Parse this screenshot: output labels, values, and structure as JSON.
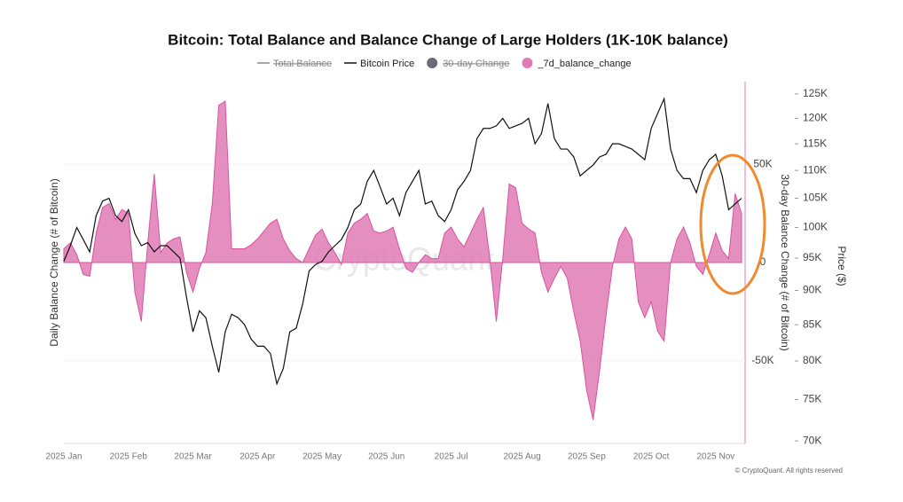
{
  "chart_data": {
    "type": "area_line",
    "title": "Bitcoin: Total Balance and Balance Change of Large Holders (1K-10K balance)",
    "ylabel": "Daily Balance Change (# of Bitcoin)",
    "y1label": "30-day Balance Change (# of Bitcoin)",
    "y2label": "Price ($)",
    "watermark": "CryptoQuant",
    "copyright": "© CryptoQuant. All rights reserved",
    "categories": [
      "2025 Jan",
      null,
      null,
      null,
      null,
      null,
      null,
      null,
      null,
      null,
      "2025 Feb",
      null,
      null,
      null,
      null,
      null,
      null,
      null,
      null,
      null,
      "2025 Mar",
      null,
      null,
      null,
      null,
      null,
      null,
      null,
      null,
      null,
      "2025 Apr",
      null,
      null,
      null,
      null,
      null,
      null,
      null,
      null,
      null,
      "2025 May",
      null,
      null,
      null,
      null,
      null,
      null,
      null,
      null,
      null,
      "2025 Jun",
      null,
      null,
      null,
      null,
      null,
      null,
      null,
      null,
      null,
      "2025 Jul",
      null,
      null,
      null,
      null,
      null,
      null,
      null,
      null,
      null,
      null,
      "2025 Aug",
      null,
      null,
      null,
      null,
      null,
      null,
      null,
      null,
      null,
      "2025 Sep",
      null,
      null,
      null,
      null,
      null,
      null,
      null,
      null,
      null,
      "2025 Oct",
      null,
      null,
      null,
      null,
      null,
      null,
      null,
      null,
      null,
      "2025 Nov",
      null,
      null,
      null,
      null
    ],
    "ylim": [
      -92000,
      92000
    ],
    "yticks": [
      {
        "value": 50000,
        "label": "50K"
      },
      0,
      {
        "value": -50000,
        "label": "-50K"
      }
    ],
    "y2lim": [
      69700,
      127600
    ],
    "y2log": true,
    "y2ticks": [
      {
        "value": 70000,
        "label": "70K"
      },
      {
        "value": 75000,
        "label": "75K"
      },
      {
        "value": 80000,
        "label": "80K"
      },
      {
        "value": 85000,
        "label": "85K"
      },
      {
        "value": 90000,
        "label": "90K"
      },
      {
        "value": 95000,
        "label": "95K"
      },
      {
        "value": 100000,
        "label": "100K"
      },
      {
        "value": 105000,
        "label": "105K"
      },
      {
        "value": 110000,
        "label": "110K"
      },
      {
        "value": 115000,
        "label": "115K"
      },
      {
        "value": 120000,
        "label": "120K"
      },
      {
        "value": 125000,
        "label": "125K"
      }
    ],
    "grid": true,
    "hidden_series": [
      {
        "name": "Total Balance",
        "marker": "line",
        "color": "#8a8a8a"
      },
      {
        "name": "30-day Change",
        "marker": "dot",
        "color": "#6b6b78"
      }
    ],
    "series": [
      {
        "name": "Bitcoin Price",
        "kind": "line",
        "axis": "y2",
        "color": "#111111",
        "values": [
          94500,
          97000,
          100000,
          98000,
          96000,
          102000,
          104500,
          105000,
          102000,
          101000,
          103000,
          99000,
          97000,
          97500,
          96000,
          97000,
          97000,
          96000,
          95000,
          89000,
          84000,
          87000,
          86000,
          82000,
          78500,
          84000,
          86500,
          86000,
          85000,
          83000,
          82000,
          82000,
          81000,
          77000,
          79000,
          84000,
          84500,
          88000,
          93000,
          94000,
          94500,
          96000,
          97000,
          98000,
          100000,
          103000,
          104000,
          108000,
          110000,
          107000,
          104000,
          105000,
          102000,
          106000,
          108000,
          110000,
          104000,
          104500,
          102000,
          101000,
          103000,
          106500,
          108000,
          110000,
          116000,
          118000,
          118000,
          118500,
          120000,
          118000,
          118500,
          119000,
          120000,
          115000,
          117000,
          123000,
          116000,
          114000,
          114000,
          112500,
          109000,
          110000,
          111000,
          112500,
          113000,
          115000,
          115000,
          114500,
          114000,
          113000,
          112000,
          118000,
          121000,
          124000,
          114000,
          110000,
          108500,
          108500,
          106000,
          110000,
          112000,
          113000,
          109000,
          103000,
          104000,
          105000
        ]
      },
      {
        "name": "_7d_balance_change",
        "kind": "area",
        "color": "#e07bb6",
        "values": [
          7000,
          10000,
          4000,
          -6000,
          -7000,
          15000,
          28000,
          30000,
          22000,
          27000,
          25000,
          -15000,
          -30000,
          10000,
          45000,
          5000,
          10000,
          12000,
          13000,
          -5000,
          -15000,
          -3000,
          5000,
          30000,
          80000,
          82000,
          7000,
          7000,
          7000,
          9000,
          12000,
          16000,
          20000,
          22000,
          12000,
          6000,
          2000,
          0,
          7000,
          14000,
          17000,
          10000,
          5000,
          -1000,
          15000,
          20000,
          22000,
          25000,
          16000,
          15000,
          16000,
          18000,
          7000,
          -3000,
          -5000,
          0,
          4000,
          2000,
          2000,
          15000,
          18000,
          12000,
          8000,
          15000,
          22000,
          28000,
          2000,
          -30000,
          2000,
          40000,
          38000,
          20000,
          17000,
          15000,
          -5000,
          -15000,
          -8000,
          -2000,
          -8000,
          -25000,
          -40000,
          -65000,
          -80000,
          -55000,
          -27000,
          -2000,
          12000,
          18000,
          12000,
          -20000,
          -28000,
          -20000,
          -35000,
          -40000,
          0,
          12000,
          18000,
          10000,
          -2000,
          -6000,
          4000,
          15000,
          6000,
          2000,
          35000,
          25000
        ]
      }
    ]
  }
}
